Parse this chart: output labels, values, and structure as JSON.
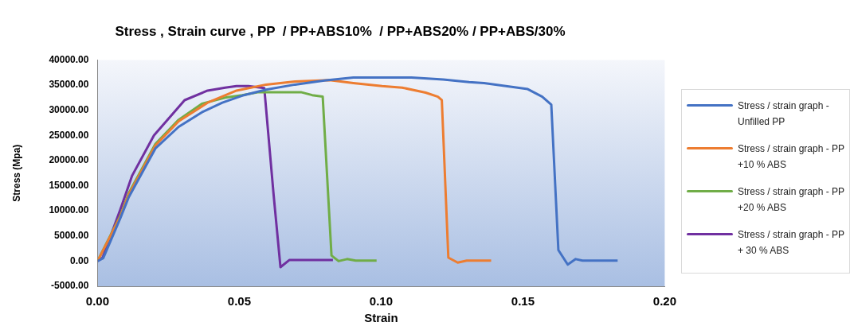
{
  "chart_data": {
    "type": "line",
    "title": "Stress , Strain curve , PP  / PP+ABS10%  / PP+ABS20% / PP+ABS/30%",
    "xlabel": "Strain",
    "ylabel": "Stress (Mpa)",
    "legend": "right",
    "grid": false,
    "marker": "none",
    "line_style": "solid",
    "xlim": [
      0,
      0.2
    ],
    "xticks": [
      {
        "value": 0,
        "label": "0.00"
      },
      {
        "value": 0.05,
        "label": "0.05"
      },
      {
        "value": 0.1,
        "label": "0.10"
      },
      {
        "value": 0.15,
        "label": "0.15"
      },
      {
        "value": 0.2,
        "label": "0.20"
      }
    ],
    "ylim": [
      -5000,
      40000
    ],
    "yticks": [
      {
        "value": -5000,
        "label": "-5000.00"
      },
      {
        "value": 0,
        "label": "0.00"
      },
      {
        "value": 5000,
        "label": "5000.00"
      },
      {
        "value": 10000,
        "label": "10000.00"
      },
      {
        "value": 15000,
        "label": "15000.00"
      },
      {
        "value": 20000,
        "label": "20000.00"
      },
      {
        "value": 25000,
        "label": "25000.00"
      },
      {
        "value": 30000,
        "label": "30000.00"
      },
      {
        "value": 35000,
        "label": "35000.00"
      },
      {
        "value": 40000,
        "label": "40000.00"
      }
    ],
    "series": [
      {
        "name": "Stress / strain graph - Unfilled PP",
        "color": "#4472c4",
        "x": [
          0,
          0.002,
          0.008,
          0.011,
          0.0204,
          0.0286,
          0.0368,
          0.044,
          0.051,
          0.0594,
          0.0696,
          0.08,
          0.0902,
          0.1107,
          0.1219,
          0.131,
          0.1363,
          0.1517,
          0.1568,
          0.16,
          0.1625,
          0.1658,
          0.1686,
          0.171,
          0.1834
        ],
        "values": [
          0,
          600,
          8500,
          12700,
          22400,
          26700,
          29600,
          31500,
          32900,
          34100,
          35100,
          35900,
          36500,
          36500,
          36100,
          35600,
          35400,
          34200,
          32700,
          31100,
          2200,
          -700,
          400,
          100,
          100
        ]
      },
      {
        "name": "Stress / strain graph - PP +10 % ABS",
        "color": "#ed7d31",
        "x": [
          0,
          0.008,
          0.011,
          0.0204,
          0.0286,
          0.0388,
          0.049,
          0.0594,
          0.0696,
          0.0818,
          0.0902,
          0.1003,
          0.1074,
          0.1157,
          0.12,
          0.1214,
          0.1237,
          0.127,
          0.1302,
          0.1388
        ],
        "values": [
          0,
          8800,
          13200,
          23000,
          27800,
          31500,
          33900,
          35100,
          35700,
          36000,
          35400,
          34800,
          34500,
          33500,
          32700,
          32000,
          700,
          -300,
          100,
          100
        ]
      },
      {
        "name": "Stress / strain graph - PP +20 % ABS",
        "color": "#70ad47",
        "x": [
          0,
          0.008,
          0.011,
          0.0204,
          0.0286,
          0.0368,
          0.045,
          0.051,
          0.0568,
          0.0717,
          0.0757,
          0.0794,
          0.0825,
          0.085,
          0.088,
          0.091,
          0.0984
        ],
        "values": [
          0,
          9000,
          13500,
          23300,
          28100,
          31300,
          32500,
          33000,
          33600,
          33600,
          33000,
          32700,
          1100,
          0,
          400,
          100,
          100
        ]
      },
      {
        "name": "Stress / strain graph - PP + 30 % ABS",
        "color": "#7030a0",
        "x": [
          0,
          0.0018,
          0.008,
          0.0122,
          0.0199,
          0.0307,
          0.0388,
          0.045,
          0.049,
          0.0532,
          0.0588,
          0.062,
          0.0645,
          0.0676,
          0.083
        ],
        "values": [
          0,
          700,
          10200,
          17000,
          25000,
          32000,
          33900,
          34500,
          34800,
          34800,
          34400,
          13700,
          -1200,
          200,
          200
        ]
      }
    ]
  }
}
